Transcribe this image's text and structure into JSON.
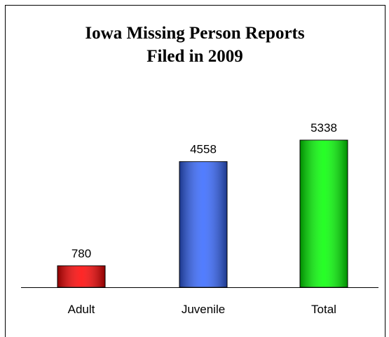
{
  "chart_data": {
    "type": "bar",
    "title": [
      "Iowa Missing Person Reports",
      "Filed in 2009"
    ],
    "categories": [
      "Adult",
      "Juvenile",
      "Total"
    ],
    "values": [
      780,
      4558,
      5338
    ],
    "colors": [
      "#ff0000",
      "#3366ff",
      "#00ff00"
    ]
  }
}
